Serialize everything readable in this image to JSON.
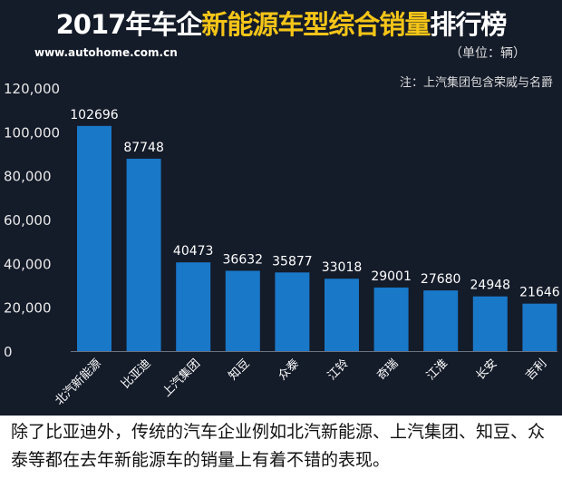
{
  "header": {
    "title_pre": "2017年车企",
    "title_hl": "新能源车型综合销量",
    "title_post": "排行榜",
    "site": "www.autohome.com.cn",
    "unit": "（单位：辆）",
    "note": "注：上汽集团包含荣威与名爵"
  },
  "caption": "除了比亚迪外，传统的汽车企业例如北汽新能源、上汽集团、知豆、众泰等都在去年新能源车的销量上有着不错的表现。",
  "chart_data": {
    "type": "bar",
    "categories": [
      "北汽新能源",
      "比亚迪",
      "上汽集团",
      "知豆",
      "众泰",
      "江铃",
      "奇瑞",
      "江淮",
      "长安",
      "吉利"
    ],
    "values": [
      102696,
      87748,
      40473,
      36632,
      35877,
      33018,
      29001,
      27680,
      24948,
      21646
    ],
    "ylim": [
      0,
      120000
    ],
    "yticks": [
      "0",
      "20,000",
      "40,000",
      "60,000",
      "80,000",
      "100,000",
      "120,000"
    ],
    "grid": false,
    "bar_color": "#1a78c8"
  }
}
